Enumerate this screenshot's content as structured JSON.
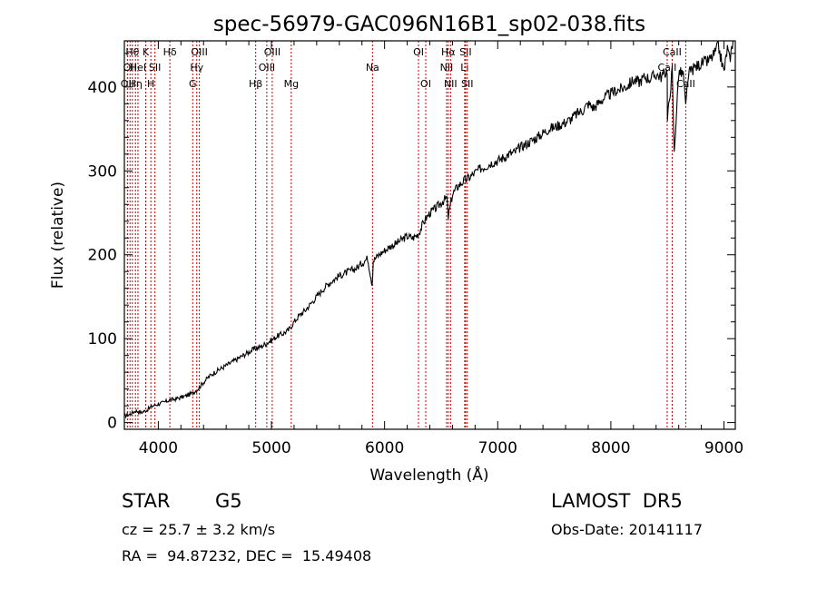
{
  "chart_data": {
    "type": "line",
    "title": "spec-56979-GAC096N16B1_sp02-038.fits",
    "xlabel": "Wavelength (Å)",
    "ylabel": "Flux (relative)",
    "xlim": [
      3700,
      9100
    ],
    "ylim": [
      -8,
      455
    ],
    "xticks": [
      4000,
      5000,
      6000,
      7000,
      8000,
      9000
    ],
    "yticks": [
      0,
      100,
      200,
      300,
      400
    ],
    "grid": false,
    "series": [
      {
        "x": [
          3700,
          3750,
          3800,
          3850,
          3900,
          3950,
          4000,
          4050,
          4100,
          4150,
          4200,
          4250,
          4300,
          4350,
          4400,
          4450,
          4500,
          4550,
          4600,
          4650,
          4700,
          4750,
          4800,
          4850,
          4900,
          4950,
          5000,
          5050,
          5100,
          5150,
          5200,
          5250,
          5300,
          5350,
          5400,
          5450,
          5500,
          5550,
          5600,
          5650,
          5700,
          5750,
          5800,
          5850,
          5890,
          5900,
          5950,
          6000,
          6050,
          6100,
          6150,
          6200,
          6250,
          6300,
          6350,
          6400,
          6450,
          6500,
          6550,
          6563,
          6600,
          6650,
          6700,
          6750,
          6800,
          6850,
          6900,
          6950,
          7000,
          7050,
          7100,
          7150,
          7200,
          7250,
          7300,
          7350,
          7400,
          7450,
          7500,
          7550,
          7600,
          7650,
          7700,
          7750,
          7800,
          7850,
          7900,
          7950,
          8000,
          8050,
          8100,
          8150,
          8200,
          8250,
          8300,
          8350,
          8400,
          8450,
          8498,
          8500,
          8542,
          8560,
          8600,
          8640,
          8662,
          8680,
          8700,
          8750,
          8800,
          8850,
          8900,
          8950,
          9000,
          9030,
          9050,
          9080
        ],
        "values": [
          8,
          10,
          14,
          12,
          15,
          20,
          22,
          24,
          27,
          28,
          30,
          32,
          35,
          40,
          48,
          55,
          60,
          64,
          68,
          72,
          76,
          80,
          84,
          88,
          90,
          94,
          98,
          103,
          106,
          110,
          120,
          128,
          134,
          142,
          150,
          158,
          165,
          170,
          175,
          178,
          181,
          184,
          190,
          196,
          165,
          193,
          200,
          205,
          210,
          213,
          218,
          222,
          220,
          225,
          240,
          250,
          255,
          262,
          268,
          245,
          272,
          282,
          288,
          292,
          298,
          303,
          306,
          310,
          312,
          316,
          320,
          322,
          328,
          332,
          336,
          340,
          345,
          350,
          352,
          355,
          358,
          362,
          368,
          372,
          380,
          375,
          382,
          388,
          392,
          396,
          398,
          402,
          408,
          406,
          412,
          410,
          415,
          412,
          420,
          360,
          420,
          320,
          418,
          415,
          375,
          410,
          418,
          424,
          428,
          430,
          436,
          448,
          418,
          446,
          432,
          455
        ]
      }
    ],
    "line_markers": [
      {
        "wavelength": 3727,
        "label": "OII",
        "row": 2
      },
      {
        "wavelength": 3750,
        "label": "OII",
        "row": 1
      },
      {
        "wavelength": 3771,
        "label": "Hθ",
        "row": 0
      },
      {
        "wavelength": 3798,
        "label": "Hη",
        "row": 2
      },
      {
        "wavelength": 3820,
        "label": "HeI",
        "row": 1
      },
      {
        "wavelength": 3889,
        "label": "K",
        "row": 0
      },
      {
        "wavelength": 3934,
        "label": "H",
        "row": 2
      },
      {
        "wavelength": 3970,
        "label": "SII",
        "row": 1
      },
      {
        "wavelength": 4102,
        "label": "Hδ",
        "row": 0
      },
      {
        "wavelength": 4304,
        "label": "G",
        "row": 2
      },
      {
        "wavelength": 4340,
        "label": "Hγ",
        "row": 1
      },
      {
        "wavelength": 4363,
        "label": "OIII",
        "row": 0
      },
      {
        "wavelength": 4861,
        "label": "Hβ",
        "row": 2
      },
      {
        "wavelength": 4959,
        "label": "OIII",
        "row": 1
      },
      {
        "wavelength": 5007,
        "label": "OIII",
        "row": 0
      },
      {
        "wavelength": 5175,
        "label": "Mg",
        "row": 2
      },
      {
        "wavelength": 5893,
        "label": "Na",
        "row": 1
      },
      {
        "wavelength": 6300,
        "label": "OI",
        "row": 0
      },
      {
        "wavelength": 6364,
        "label": "OI",
        "row": 2
      },
      {
        "wavelength": 6548,
        "label": "NII",
        "row": 1
      },
      {
        "wavelength": 6563,
        "label": "Hα",
        "row": 0
      },
      {
        "wavelength": 6583,
        "label": "NII",
        "row": 2
      },
      {
        "wavelength": 6708,
        "label": "Li",
        "row": 1
      },
      {
        "wavelength": 6716,
        "label": "SII",
        "row": 0
      },
      {
        "wavelength": 6731,
        "label": "SII",
        "row": 2
      },
      {
        "wavelength": 8498,
        "label": "CaII",
        "row": 1
      },
      {
        "wavelength": 8542,
        "label": "CaII",
        "row": 0
      },
      {
        "wavelength": 8662,
        "label": "CaII",
        "row": 2
      }
    ]
  },
  "info": {
    "object_class": "STAR",
    "subclass": "G5",
    "survey": "LAMOST  DR5",
    "redshift_line": "cz = 25.7 ± 3.2 km/s",
    "obs_date_line": "Obs-Date: 20141117",
    "coords_line": "RA =  94.87232, DEC =  15.49408"
  }
}
